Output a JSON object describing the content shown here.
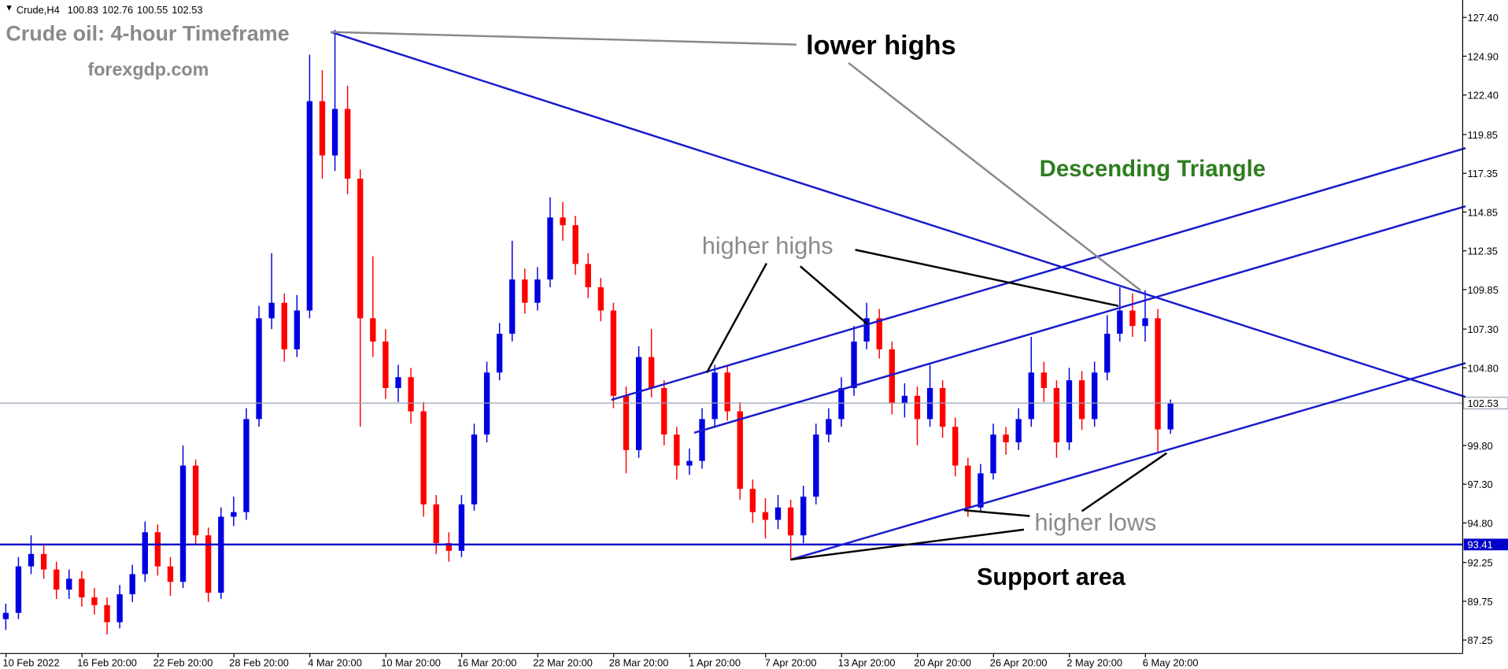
{
  "chart_data": {
    "type": "candlestick",
    "symbol": "Crude,H4",
    "annotations": [
      "Crude oil: 4-hour Timeframe",
      "forexgdp.com",
      "lower highs",
      "Descending Triangle",
      "higher highs",
      "higher lows",
      "Support area"
    ],
    "categories": [
      null,
      null,
      "10 Feb 2022",
      null,
      null,
      null,
      null,
      null,
      "16 Feb 20:00",
      null,
      null,
      null,
      null,
      null,
      "22 Feb 20:00",
      null,
      null,
      null,
      null,
      null,
      "28 Feb 20:00",
      null,
      null,
      null,
      null,
      null,
      "4 Mar 20:00",
      null,
      null,
      null,
      null,
      null,
      "10 Mar 20:00",
      null,
      null,
      null,
      null,
      null,
      "16 Mar 20:00",
      null,
      null,
      null,
      null,
      null,
      "22 Mar 20:00",
      null,
      null,
      null,
      null,
      null,
      "28 Mar 20:00",
      null,
      null,
      null,
      null,
      null,
      "1 Apr 20:00",
      null,
      null,
      null,
      null,
      null,
      "7 Apr 20:00",
      null,
      null,
      null,
      null,
      null,
      "13 Apr 20:00",
      null,
      null,
      null,
      null,
      null,
      "20 Apr 20:00",
      null,
      null,
      null,
      null,
      null,
      "26 Apr 20:00",
      null,
      null,
      null,
      null,
      null,
      "2 May 20:00",
      null,
      null,
      null,
      null,
      null,
      "6 May 20:00"
    ],
    "open": [
      88.6,
      89.0,
      92.0,
      92.8,
      91.8,
      90.5,
      91.2,
      90.0,
      89.5,
      88.4,
      90.2,
      91.5,
      94.2,
      92.0,
      91.0,
      98.5,
      94.0,
      90.3,
      95.2,
      95.5,
      101.5,
      108.0,
      109.0,
      106.0,
      108.5,
      122.0,
      118.5,
      121.5,
      117.0,
      108.0,
      106.5,
      103.5,
      104.2,
      102.0,
      96.0,
      93.5,
      93.0,
      96.0,
      100.5,
      104.5,
      107.0,
      110.5,
      109.0,
      110.5,
      114.5,
      114.0,
      111.5,
      110.0,
      108.5,
      103.0,
      99.5,
      105.5,
      103.5,
      100.5,
      98.5,
      98.8,
      101.5,
      104.5,
      102.0,
      97.0,
      95.5,
      95.0,
      95.8,
      94.0,
      96.5,
      100.5,
      101.5,
      103.5,
      106.5,
      108.0,
      106.0,
      102.5,
      103.0,
      101.5,
      103.5,
      101.0,
      98.5,
      95.8,
      98.0,
      100.5,
      100.0,
      101.5,
      104.5,
      103.5,
      100.0,
      104.0,
      101.5,
      104.5,
      107.0,
      108.5,
      107.5,
      108.0,
      100.83
    ],
    "high": [
      89.6,
      92.6,
      94.0,
      93.4,
      92.3,
      91.8,
      91.7,
      90.6,
      90.0,
      90.8,
      92.1,
      94.9,
      94.7,
      92.6,
      99.8,
      98.9,
      94.5,
      95.8,
      96.5,
      102.2,
      108.8,
      112.2,
      109.6,
      109.5,
      125.0,
      124.0,
      126.6,
      123.0,
      117.6,
      112.0,
      107.3,
      105.0,
      104.8,
      102.6,
      96.6,
      94.2,
      96.6,
      101.2,
      105.2,
      107.7,
      113.0,
      111.2,
      111.3,
      115.8,
      115.5,
      114.6,
      112.2,
      110.6,
      109.0,
      103.6,
      106.2,
      107.3,
      104.0,
      101.0,
      99.6,
      102.2,
      105.0,
      105.0,
      102.6,
      97.6,
      96.4,
      96.6,
      96.3,
      97.2,
      101.2,
      102.2,
      104.2,
      107.5,
      109.0,
      108.6,
      106.5,
      103.8,
      103.6,
      105.0,
      104.0,
      101.6,
      99.0,
      98.6,
      101.2,
      101.0,
      102.2,
      106.8,
      105.2,
      104.0,
      104.8,
      104.6,
      105.2,
      108.2,
      110.0,
      109.6,
      109.8,
      108.6,
      102.76
    ],
    "low": [
      87.9,
      88.6,
      91.5,
      91.2,
      89.9,
      89.9,
      89.4,
      88.9,
      87.6,
      88.0,
      89.7,
      91.0,
      91.4,
      90.1,
      90.6,
      93.4,
      89.7,
      89.9,
      94.6,
      95.0,
      101.0,
      107.3,
      105.2,
      105.5,
      108.0,
      117.0,
      117.5,
      116.0,
      101.0,
      105.5,
      102.8,
      102.6,
      101.2,
      95.2,
      92.8,
      92.3,
      92.6,
      95.6,
      100.0,
      104.0,
      106.5,
      108.3,
      108.5,
      110.0,
      113.0,
      110.8,
      109.3,
      107.8,
      102.2,
      98.0,
      99.0,
      102.9,
      99.8,
      97.6,
      97.9,
      98.3,
      101.0,
      101.4,
      96.3,
      94.8,
      93.8,
      94.4,
      92.4,
      93.5,
      96.0,
      100.0,
      101.0,
      103.0,
      106.0,
      105.4,
      101.8,
      101.6,
      99.8,
      101.0,
      100.3,
      97.8,
      95.2,
      95.5,
      97.6,
      99.2,
      99.5,
      101.0,
      102.6,
      99.0,
      99.5,
      100.8,
      101.0,
      104.0,
      106.5,
      106.8,
      106.5,
      99.4,
      100.55
    ],
    "close": [
      89.0,
      92.0,
      92.8,
      91.8,
      90.5,
      91.2,
      90.0,
      89.5,
      88.4,
      90.2,
      91.5,
      94.2,
      92.0,
      91.0,
      98.5,
      94.0,
      90.3,
      95.2,
      95.5,
      101.5,
      108.0,
      109.0,
      106.0,
      108.5,
      122.0,
      118.5,
      121.5,
      117.0,
      108.0,
      106.5,
      103.5,
      104.2,
      102.0,
      96.0,
      93.5,
      93.0,
      96.0,
      100.5,
      104.5,
      107.0,
      110.5,
      109.0,
      110.5,
      114.5,
      114.0,
      111.5,
      110.0,
      108.5,
      103.0,
      99.5,
      105.5,
      103.5,
      100.5,
      98.5,
      98.8,
      101.5,
      104.5,
      102.0,
      97.0,
      95.5,
      95.0,
      95.8,
      94.0,
      96.5,
      100.5,
      101.5,
      103.5,
      106.5,
      108.0,
      106.0,
      102.5,
      103.0,
      101.5,
      103.5,
      101.0,
      98.5,
      95.8,
      98.0,
      100.5,
      100.0,
      101.5,
      104.5,
      103.5,
      100.0,
      104.0,
      101.5,
      104.5,
      107.0,
      108.5,
      107.5,
      108.0,
      100.83,
      102.53
    ],
    "up_color": "#0000e0",
    "down_color": "#ff0000",
    "support_level": 93.41,
    "support_color": "#0000c8",
    "bid_line_color": "#9aa4b4",
    "ylim": [
      86.38,
      128.4
    ],
    "yticks": [
      {
        "value": 127.4,
        "label": "127.40"
      },
      {
        "value": 124.9,
        "label": "124.90"
      },
      {
        "value": 122.4,
        "label": "122.40"
      },
      {
        "value": 119.85,
        "label": "119.85"
      },
      {
        "value": 117.35,
        "label": "117.35"
      },
      {
        "value": 114.85,
        "label": "114.85"
      },
      {
        "value": 112.35,
        "label": "112.35"
      },
      {
        "value": 109.85,
        "label": "109.85"
      },
      {
        "value": 107.3,
        "label": "107.30"
      },
      {
        "value": 104.8,
        "label": "104.80"
      },
      {
        "value": 99.8,
        "label": "99.80"
      },
      {
        "value": 97.3,
        "label": "97.30"
      },
      {
        "value": 94.8,
        "label": "94.80"
      },
      {
        "value": 92.25,
        "label": "92.25"
      },
      {
        "value": 89.75,
        "label": "89.75"
      },
      {
        "value": 87.25,
        "label": "87.25"
      }
    ]
  }
}
